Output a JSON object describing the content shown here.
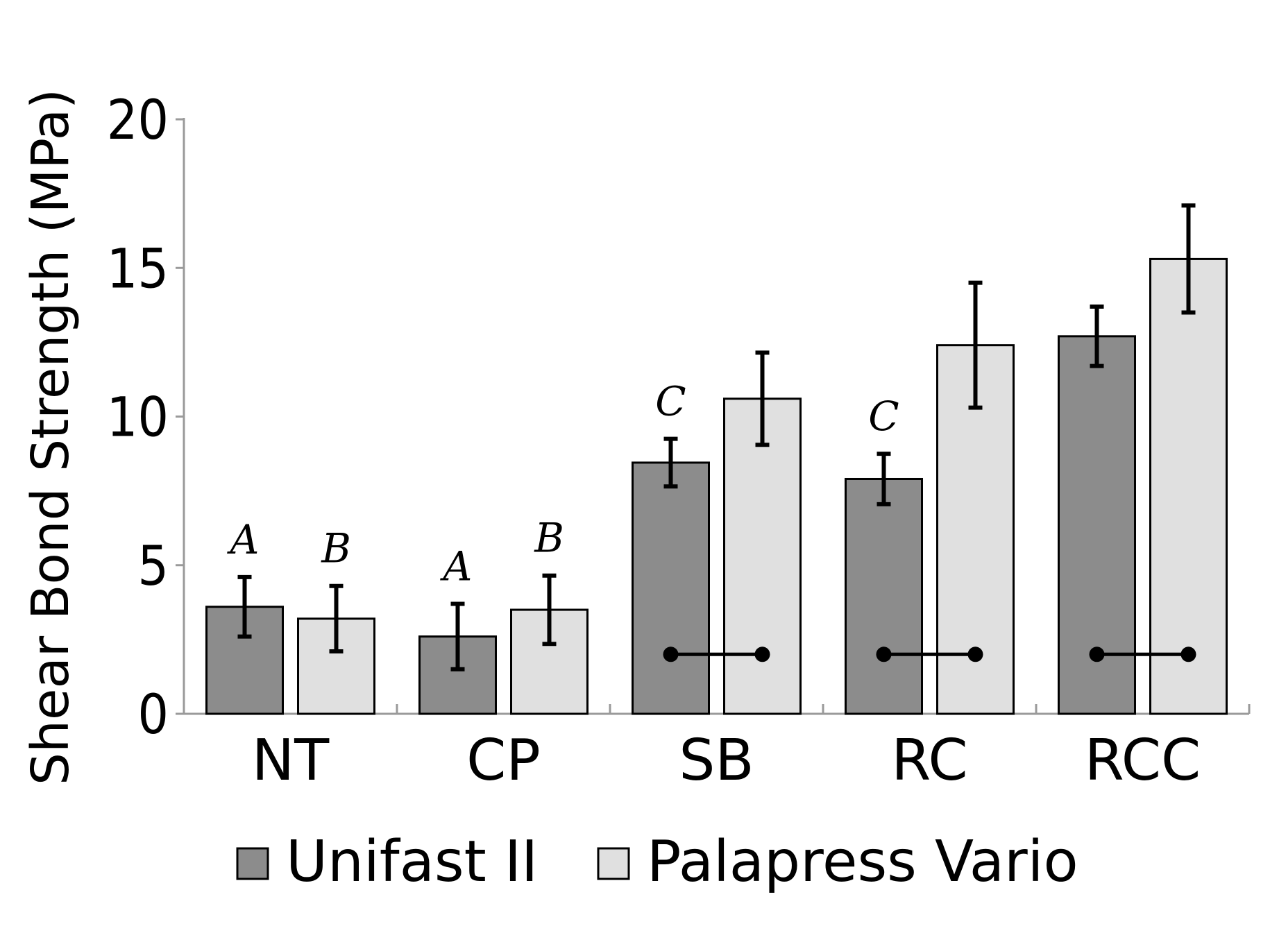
{
  "chart_data": {
    "type": "bar",
    "title": "",
    "xlabel": "",
    "ylabel": "Shear Bond Strength (MPa)",
    "ylim": [
      0,
      20
    ],
    "yticks": [
      "0",
      "5",
      "10",
      "15",
      "20"
    ],
    "categories": [
      "NT",
      "CP",
      "SB",
      "RC",
      "RCC"
    ],
    "series": [
      {
        "name": "Unifast II",
        "color": "#8c8c8c",
        "values": [
          3.6,
          2.6,
          8.45,
          7.9,
          12.7
        ],
        "errors": [
          1.0,
          1.1,
          0.8,
          0.85,
          1.0
        ],
        "labels": [
          "A",
          "A",
          "C",
          "C",
          ""
        ]
      },
      {
        "name": "Palapress Vario",
        "color": "#e0e0e0",
        "values": [
          3.2,
          3.5,
          10.6,
          12.4,
          15.3
        ],
        "errors": [
          1.1,
          1.15,
          1.55,
          2.1,
          1.8
        ],
        "labels": [
          "B",
          "B",
          "",
          "",
          ""
        ]
      }
    ],
    "connectors": [
      {
        "category": "SB",
        "value": 2.0
      },
      {
        "category": "RC",
        "value": 2.0
      },
      {
        "category": "RCC",
        "value": 2.0
      }
    ],
    "legend": {
      "position": "bottom",
      "entries": [
        "Unifast II",
        "Palapress Vario"
      ]
    },
    "grid": false
  }
}
